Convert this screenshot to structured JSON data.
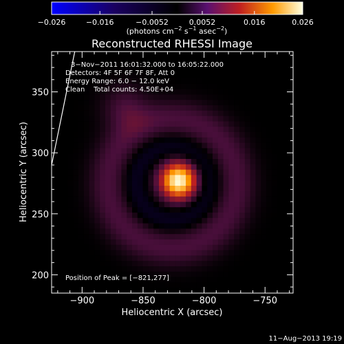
{
  "chart_data": {
    "type": "heatmap",
    "title": "Reconstructed RHESSI Image",
    "xlabel": "Heliocentric X (arcsec)",
    "ylabel": "Heliocentric Y (arcsec)",
    "xlim": [
      -925,
      -727
    ],
    "ylim": [
      185,
      383
    ],
    "x_ticks": [
      -900,
      -850,
      -800,
      -750
    ],
    "x_tick_labels": [
      "−900",
      "−850",
      "−800",
      "−750"
    ],
    "y_ticks": [
      200,
      250,
      300,
      350
    ],
    "y_tick_labels": [
      "200",
      "250",
      "300",
      "350"
    ],
    "colorbar": {
      "range": [
        -0.026,
        0.026
      ],
      "ticks": [
        -0.026,
        -0.016,
        -0.0052,
        0.0052,
        0.016,
        0.026
      ],
      "tick_labels": [
        "−0.026",
        "−0.016",
        "−0.0052",
        "0.0052",
        "0.016",
        "0.026"
      ],
      "unit_prefix": "(photons cm",
      "unit_exp1": "−2",
      "unit_mid1": " s",
      "unit_exp2": "−1",
      "unit_mid2": " asec",
      "unit_exp3": "−2",
      "unit_suffix": ")"
    },
    "annotations": [
      "3−Nov−2011 16:01:32.000 to 16:05:22.000",
      "Detectors: 4F 5F 6F 7F 8F, Att 0",
      "Energy Range: 6.0 − 12.0 keV",
      "Clean    Total counts: 4.50E+04"
    ],
    "peak_label": "Position of Peak = [−821,277]",
    "peak": {
      "x": -821,
      "y": 277,
      "value": 0.026
    },
    "limb_line": [
      {
        "x": -925,
        "y": 290
      },
      {
        "x": -906,
        "y": 383
      }
    ],
    "sources": [
      {
        "kind": "core",
        "x": -821,
        "y": 277,
        "sigma": 11,
        "amp": 0.026
      },
      {
        "kind": "ring",
        "x": -826,
        "y": 275,
        "radius": 53,
        "width": 11,
        "amp": 0.0055
      },
      {
        "kind": "ring",
        "x": -826,
        "y": 275,
        "radius": 30,
        "width": 6,
        "amp": -0.0045
      },
      {
        "kind": "blob",
        "x": -865,
        "y": 337,
        "sigma": 13,
        "amp": 0.005
      }
    ]
  },
  "footer": {
    "date": "11−Aug−2013 19:19"
  }
}
